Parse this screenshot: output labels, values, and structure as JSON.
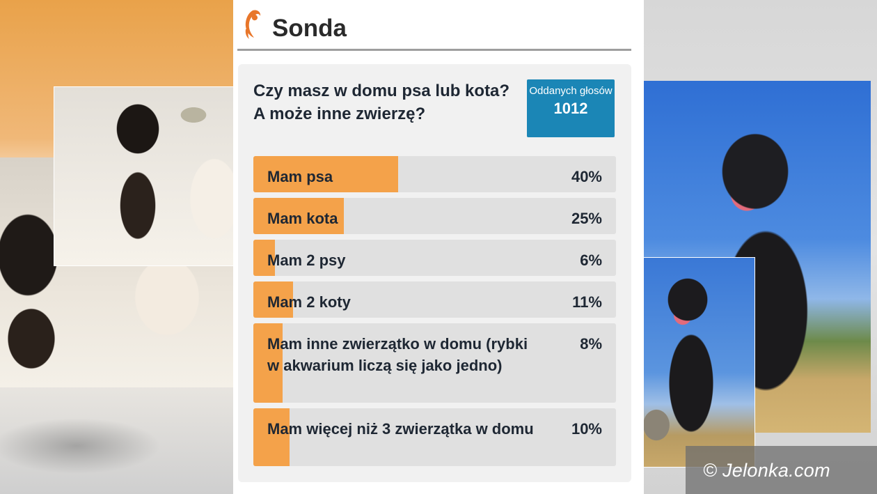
{
  "poll": {
    "title": "Sonda",
    "question": "Czy masz w domu psa lub kota? A może inne zwierzę?",
    "votes_label": "Oddanych głosów",
    "votes_count": "1012",
    "accent_color": "#f4a24a",
    "badge_color": "#1b86b6",
    "options": [
      {
        "label": "Mam psa",
        "percent": "40%",
        "fill": 40
      },
      {
        "label": "Mam kota",
        "percent": "25%",
        "fill": 25
      },
      {
        "label": "Mam 2 psy",
        "percent": "6%",
        "fill": 6
      },
      {
        "label": "Mam 2 koty",
        "percent": "11%",
        "fill": 11
      },
      {
        "label": "Mam inne zwierzątko w domu (rybki w akwarium liczą się jako jedno)",
        "percent": "8%",
        "fill": 8
      },
      {
        "label": "Mam więcej niż 3 zwierzątka w domu",
        "percent": "10%",
        "fill": 10
      }
    ]
  },
  "copyright": "© Jelonka.com",
  "icons": {
    "logo": "orange-deer-logo-icon"
  }
}
